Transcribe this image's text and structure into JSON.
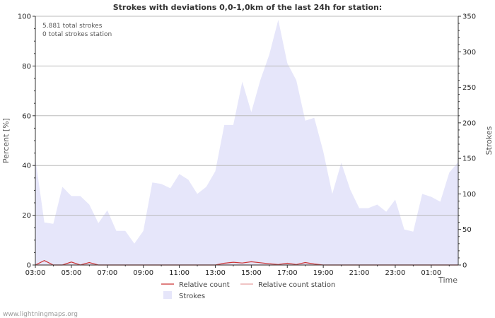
{
  "chart_data": {
    "type": "area",
    "title": "Strokes with deviations 0,0-1,0km of the last 24h for station:",
    "annotations": [
      "5.881 total strokes",
      "0 total strokes station"
    ],
    "xlabel": "Time",
    "ylabel_left": "Percent   [%]",
    "ylabel_right": "Strokes",
    "x_ticks": [
      "03:00",
      "05:00",
      "07:00",
      "09:00",
      "11:00",
      "13:00",
      "15:00",
      "17:00",
      "19:00",
      "21:00",
      "23:00",
      "01:00"
    ],
    "y_left_ticks": [
      0,
      20,
      40,
      60,
      80,
      100
    ],
    "y_right_ticks": [
      0,
      50,
      100,
      150,
      200,
      250,
      300,
      350
    ],
    "y_left_range": [
      0,
      100
    ],
    "y_right_range": [
      0,
      350
    ],
    "x_range_hours": [
      0,
      23.5
    ],
    "series": [
      {
        "name": "Strokes",
        "axis": "right",
        "color": "#e6e6fa",
        "hours": [
          0.0,
          0.5,
          1.0,
          1.5,
          2.0,
          2.5,
          3.0,
          3.5,
          4.0,
          4.5,
          5.0,
          5.5,
          6.0,
          6.5,
          7.0,
          7.5,
          8.0,
          8.5,
          9.0,
          9.5,
          10.0,
          10.5,
          11.0,
          11.5,
          12.0,
          12.5,
          13.0,
          13.5,
          14.0,
          14.5,
          15.0,
          15.5,
          16.0,
          16.5,
          17.0,
          17.5,
          18.0,
          18.5,
          19.0,
          19.5,
          20.0,
          20.5,
          21.0,
          21.5,
          22.0,
          22.5,
          23.0,
          23.5
        ],
        "values": [
          150,
          60,
          58,
          110,
          97,
          97,
          85,
          59,
          77,
          48,
          48,
          30,
          48,
          116,
          114,
          108,
          128,
          120,
          100,
          110,
          132,
          197,
          197,
          258,
          215,
          260,
          296,
          345,
          284,
          260,
          203,
          207,
          160,
          100,
          144,
          106,
          80,
          80,
          85,
          75,
          92,
          50,
          47,
          100,
          96,
          89,
          130,
          145
        ]
      },
      {
        "name": "Relative count",
        "axis": "left",
        "color": "#cc3333",
        "hours": [
          0.0,
          0.5,
          1.0,
          1.5,
          2.0,
          2.5,
          3.0,
          3.5,
          4.0,
          4.5,
          5.0,
          5.5,
          6.0,
          6.5,
          7.0,
          7.5,
          8.0,
          8.5,
          9.0,
          9.5,
          10.0,
          10.5,
          11.0,
          11.5,
          12.0,
          12.5,
          13.0,
          13.5,
          14.0,
          14.5,
          15.0,
          15.5,
          16.0,
          16.5,
          17.0,
          17.5,
          18.0,
          18.5,
          19.0,
          19.5,
          20.0,
          20.5,
          21.0,
          21.5,
          22.0,
          22.5,
          23.0,
          23.5
        ],
        "values": [
          0,
          1.8,
          0,
          0,
          1.2,
          0,
          1,
          0,
          0,
          0,
          0,
          0,
          0,
          0,
          0,
          0,
          0,
          0,
          0,
          0,
          0,
          0.7,
          1.1,
          0.8,
          1.3,
          0.9,
          0.5,
          0.2,
          0.7,
          0.2,
          1,
          0.4,
          0,
          0,
          0,
          0,
          0,
          0,
          0,
          0,
          0,
          0,
          0,
          0,
          0,
          0,
          0,
          0
        ]
      },
      {
        "name": "Relative count station",
        "axis": "left",
        "color": "#e8a0a0",
        "hours": [
          0.0,
          23.5
        ],
        "values": [
          0,
          0
        ]
      }
    ],
    "legend": [
      {
        "label": "Relative count",
        "kind": "line",
        "color": "#cc3333"
      },
      {
        "label": "Relative count station",
        "kind": "line",
        "color": "#e8a0a0"
      },
      {
        "label": "Strokes",
        "kind": "area",
        "color": "#e6e6fa"
      }
    ],
    "grid": true,
    "legend_position": "bottom"
  },
  "footer": {
    "credit": "www.lightningmaps.org"
  }
}
